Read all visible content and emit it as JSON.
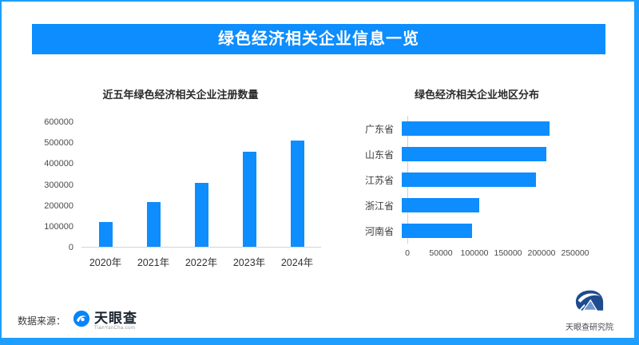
{
  "page": {
    "title": "绿色经济相关企业信息一览",
    "footer": {
      "source_label": "数据来源：",
      "source_brand": "天眼查",
      "source_brand_sub": "TianYanCha.com",
      "institute": "天眼查研究院"
    },
    "icons": {
      "source_logo": "tianyancha-logo-icon",
      "institute_logo": "tianyancha-institute-logo-icon"
    },
    "colors": {
      "accent_blue": "#0D8DFE",
      "border_blue": "#1E9EFF",
      "title_text": "#2b2b2b",
      "axis_text": "#4a4a4a",
      "institute_navy": "#1E4B90"
    }
  },
  "chart_data": [
    {
      "type": "bar",
      "orientation": "vertical",
      "title": "近五年绿色经济相关企业注册数量",
      "categories": [
        "2020年",
        "2021年",
        "2022年",
        "2023年",
        "2024年"
      ],
      "values": [
        120000,
        215000,
        305000,
        455000,
        510000
      ],
      "ylabel": "",
      "xlabel": "",
      "ylim": [
        0,
        600000
      ],
      "yticks": [
        0,
        100000,
        200000,
        300000,
        400000,
        500000,
        600000
      ],
      "grid": false,
      "legend": "none",
      "bar_color": "#0D8DFE"
    },
    {
      "type": "bar",
      "orientation": "horizontal",
      "title": "绿色经济相关企业地区分布",
      "categories": [
        "广东省",
        "山东省",
        "江苏省",
        "浙江省",
        "河南省"
      ],
      "values": [
        220000,
        215000,
        200000,
        116000,
        105000
      ],
      "ylabel": "",
      "xlabel": "",
      "xlim": [
        0,
        250000
      ],
      "xticks": [
        0,
        50000,
        100000,
        150000,
        200000,
        250000
      ],
      "grid": false,
      "legend": "none",
      "bar_color": "#0D8DFE"
    }
  ]
}
